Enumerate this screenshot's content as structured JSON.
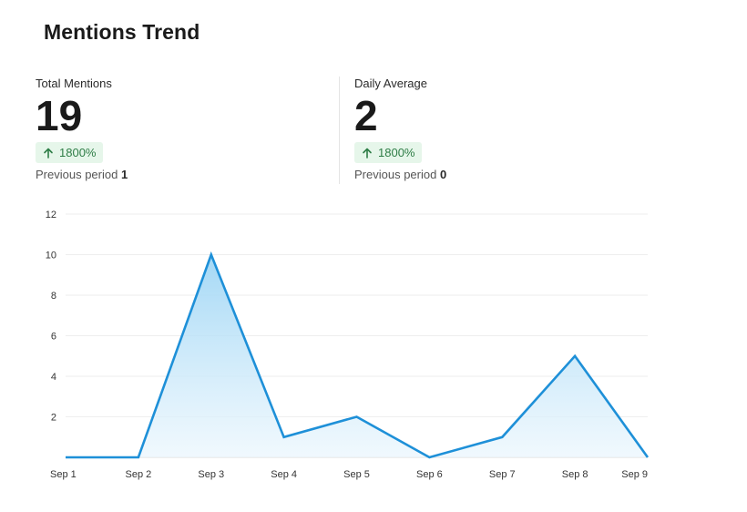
{
  "title": "Mentions Trend",
  "stats": {
    "total": {
      "label": "Total Mentions",
      "value": "19",
      "change": "1800%",
      "previous_label": "Previous period",
      "previous_value": "1"
    },
    "daily": {
      "label": "Daily Average",
      "value": "2",
      "change": "1800%",
      "previous_label": "Previous period",
      "previous_value": "0"
    }
  },
  "colors": {
    "line": "#1e90d8",
    "area_top": "#9fd6f5",
    "area_bottom": "#eaf6fd",
    "grid": "#eeeeee",
    "badge_bg": "#e6f6ea",
    "badge_text": "#2e7d46"
  },
  "icons": {
    "change": "arrow-up-icon"
  },
  "chart_data": {
    "type": "area",
    "categories": [
      "Sep 1",
      "Sep 2",
      "Sep 3",
      "Sep 4",
      "Sep 5",
      "Sep 6",
      "Sep 7",
      "Sep 8",
      "Sep 9"
    ],
    "series": [
      {
        "values": [
          0,
          0,
          10,
          1,
          2,
          0,
          1,
          5,
          0
        ]
      }
    ],
    "yticks": [
      2,
      4,
      6,
      8,
      10,
      12
    ],
    "ylim": [
      0,
      12
    ],
    "grid": true,
    "legend": "none"
  }
}
